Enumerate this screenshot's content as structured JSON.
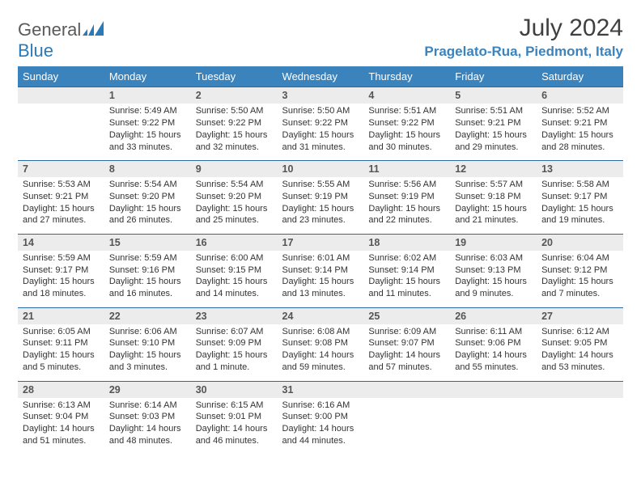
{
  "logo": {
    "word1": "General",
    "word2": "Blue"
  },
  "title": "July 2024",
  "location": "Pragelato-Rua, Piedmont, Italy",
  "colors": {
    "header_bg": "#3b83bd",
    "header_text": "#ffffff",
    "daynum_bg": "#ececec",
    "rule": "#2a6aa0",
    "accent": "#2a7ab8"
  },
  "daynames": [
    "Sunday",
    "Monday",
    "Tuesday",
    "Wednesday",
    "Thursday",
    "Friday",
    "Saturday"
  ],
  "weeks": [
    [
      null,
      {
        "n": "1",
        "sr": "Sunrise: 5:49 AM",
        "ss": "Sunset: 9:22 PM",
        "dl1": "Daylight: 15 hours",
        "dl2": "and 33 minutes."
      },
      {
        "n": "2",
        "sr": "Sunrise: 5:50 AM",
        "ss": "Sunset: 9:22 PM",
        "dl1": "Daylight: 15 hours",
        "dl2": "and 32 minutes."
      },
      {
        "n": "3",
        "sr": "Sunrise: 5:50 AM",
        "ss": "Sunset: 9:22 PM",
        "dl1": "Daylight: 15 hours",
        "dl2": "and 31 minutes."
      },
      {
        "n": "4",
        "sr": "Sunrise: 5:51 AM",
        "ss": "Sunset: 9:22 PM",
        "dl1": "Daylight: 15 hours",
        "dl2": "and 30 minutes."
      },
      {
        "n": "5",
        "sr": "Sunrise: 5:51 AM",
        "ss": "Sunset: 9:21 PM",
        "dl1": "Daylight: 15 hours",
        "dl2": "and 29 minutes."
      },
      {
        "n": "6",
        "sr": "Sunrise: 5:52 AM",
        "ss": "Sunset: 9:21 PM",
        "dl1": "Daylight: 15 hours",
        "dl2": "and 28 minutes."
      }
    ],
    [
      {
        "n": "7",
        "sr": "Sunrise: 5:53 AM",
        "ss": "Sunset: 9:21 PM",
        "dl1": "Daylight: 15 hours",
        "dl2": "and 27 minutes."
      },
      {
        "n": "8",
        "sr": "Sunrise: 5:54 AM",
        "ss": "Sunset: 9:20 PM",
        "dl1": "Daylight: 15 hours",
        "dl2": "and 26 minutes."
      },
      {
        "n": "9",
        "sr": "Sunrise: 5:54 AM",
        "ss": "Sunset: 9:20 PM",
        "dl1": "Daylight: 15 hours",
        "dl2": "and 25 minutes."
      },
      {
        "n": "10",
        "sr": "Sunrise: 5:55 AM",
        "ss": "Sunset: 9:19 PM",
        "dl1": "Daylight: 15 hours",
        "dl2": "and 23 minutes."
      },
      {
        "n": "11",
        "sr": "Sunrise: 5:56 AM",
        "ss": "Sunset: 9:19 PM",
        "dl1": "Daylight: 15 hours",
        "dl2": "and 22 minutes."
      },
      {
        "n": "12",
        "sr": "Sunrise: 5:57 AM",
        "ss": "Sunset: 9:18 PM",
        "dl1": "Daylight: 15 hours",
        "dl2": "and 21 minutes."
      },
      {
        "n": "13",
        "sr": "Sunrise: 5:58 AM",
        "ss": "Sunset: 9:17 PM",
        "dl1": "Daylight: 15 hours",
        "dl2": "and 19 minutes."
      }
    ],
    [
      {
        "n": "14",
        "sr": "Sunrise: 5:59 AM",
        "ss": "Sunset: 9:17 PM",
        "dl1": "Daylight: 15 hours",
        "dl2": "and 18 minutes."
      },
      {
        "n": "15",
        "sr": "Sunrise: 5:59 AM",
        "ss": "Sunset: 9:16 PM",
        "dl1": "Daylight: 15 hours",
        "dl2": "and 16 minutes."
      },
      {
        "n": "16",
        "sr": "Sunrise: 6:00 AM",
        "ss": "Sunset: 9:15 PM",
        "dl1": "Daylight: 15 hours",
        "dl2": "and 14 minutes."
      },
      {
        "n": "17",
        "sr": "Sunrise: 6:01 AM",
        "ss": "Sunset: 9:14 PM",
        "dl1": "Daylight: 15 hours",
        "dl2": "and 13 minutes."
      },
      {
        "n": "18",
        "sr": "Sunrise: 6:02 AM",
        "ss": "Sunset: 9:14 PM",
        "dl1": "Daylight: 15 hours",
        "dl2": "and 11 minutes."
      },
      {
        "n": "19",
        "sr": "Sunrise: 6:03 AM",
        "ss": "Sunset: 9:13 PM",
        "dl1": "Daylight: 15 hours",
        "dl2": "and 9 minutes."
      },
      {
        "n": "20",
        "sr": "Sunrise: 6:04 AM",
        "ss": "Sunset: 9:12 PM",
        "dl1": "Daylight: 15 hours",
        "dl2": "and 7 minutes."
      }
    ],
    [
      {
        "n": "21",
        "sr": "Sunrise: 6:05 AM",
        "ss": "Sunset: 9:11 PM",
        "dl1": "Daylight: 15 hours",
        "dl2": "and 5 minutes."
      },
      {
        "n": "22",
        "sr": "Sunrise: 6:06 AM",
        "ss": "Sunset: 9:10 PM",
        "dl1": "Daylight: 15 hours",
        "dl2": "and 3 minutes."
      },
      {
        "n": "23",
        "sr": "Sunrise: 6:07 AM",
        "ss": "Sunset: 9:09 PM",
        "dl1": "Daylight: 15 hours",
        "dl2": "and 1 minute."
      },
      {
        "n": "24",
        "sr": "Sunrise: 6:08 AM",
        "ss": "Sunset: 9:08 PM",
        "dl1": "Daylight: 14 hours",
        "dl2": "and 59 minutes."
      },
      {
        "n": "25",
        "sr": "Sunrise: 6:09 AM",
        "ss": "Sunset: 9:07 PM",
        "dl1": "Daylight: 14 hours",
        "dl2": "and 57 minutes."
      },
      {
        "n": "26",
        "sr": "Sunrise: 6:11 AM",
        "ss": "Sunset: 9:06 PM",
        "dl1": "Daylight: 14 hours",
        "dl2": "and 55 minutes."
      },
      {
        "n": "27",
        "sr": "Sunrise: 6:12 AM",
        "ss": "Sunset: 9:05 PM",
        "dl1": "Daylight: 14 hours",
        "dl2": "and 53 minutes."
      }
    ],
    [
      {
        "n": "28",
        "sr": "Sunrise: 6:13 AM",
        "ss": "Sunset: 9:04 PM",
        "dl1": "Daylight: 14 hours",
        "dl2": "and 51 minutes."
      },
      {
        "n": "29",
        "sr": "Sunrise: 6:14 AM",
        "ss": "Sunset: 9:03 PM",
        "dl1": "Daylight: 14 hours",
        "dl2": "and 48 minutes."
      },
      {
        "n": "30",
        "sr": "Sunrise: 6:15 AM",
        "ss": "Sunset: 9:01 PM",
        "dl1": "Daylight: 14 hours",
        "dl2": "and 46 minutes."
      },
      {
        "n": "31",
        "sr": "Sunrise: 6:16 AM",
        "ss": "Sunset: 9:00 PM",
        "dl1": "Daylight: 14 hours",
        "dl2": "and 44 minutes."
      },
      null,
      null,
      null
    ]
  ]
}
